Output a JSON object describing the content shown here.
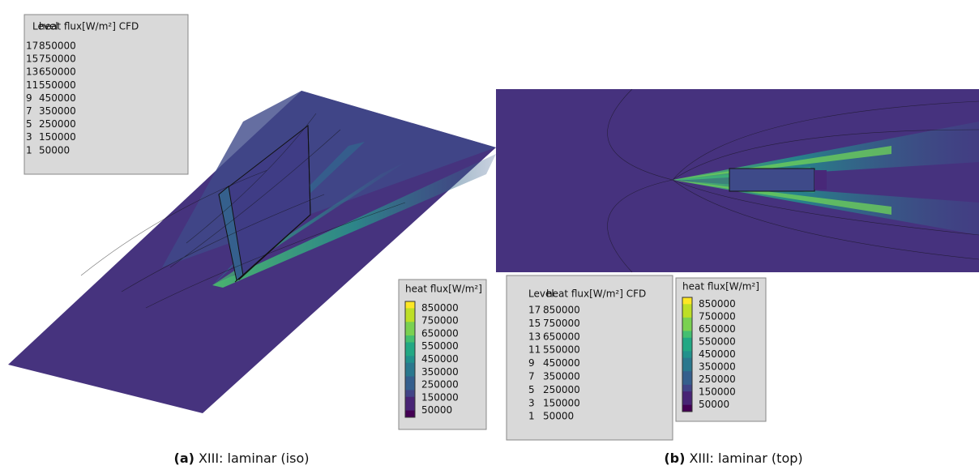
{
  "panels": [
    {
      "caption_label": "(a)",
      "caption": "XIII: laminar (iso)",
      "level_table": {
        "header": [
          "Level",
          "heat flux[W/m²] CFD"
        ],
        "rows": [
          [
            "17",
            "850000"
          ],
          [
            "15",
            "750000"
          ],
          [
            "13",
            "650000"
          ],
          [
            "11",
            "550000"
          ],
          [
            "9",
            "450000"
          ],
          [
            "7",
            "350000"
          ],
          [
            "5",
            "250000"
          ],
          [
            "3",
            "150000"
          ],
          [
            "1",
            "50000"
          ]
        ]
      },
      "colorbar": {
        "title": "heat flux[W/m²]",
        "labels": [
          "850000",
          "750000",
          "650000",
          "550000",
          "450000",
          "350000",
          "250000",
          "150000",
          "50000"
        ]
      }
    },
    {
      "caption_label": "(b)",
      "caption": "XIII: laminar (top)",
      "level_table": {
        "header": [
          "Level",
          "heat flux[W/m²] CFD"
        ],
        "rows": [
          [
            "17",
            "850000"
          ],
          [
            "15",
            "750000"
          ],
          [
            "13",
            "650000"
          ],
          [
            "11",
            "550000"
          ],
          [
            "9",
            "450000"
          ],
          [
            "7",
            "350000"
          ],
          [
            "5",
            "250000"
          ],
          [
            "3",
            "150000"
          ],
          [
            "1",
            "50000"
          ]
        ]
      },
      "colorbar": {
        "title": "heat flux[W/m²]",
        "labels": [
          "850000",
          "750000",
          "650000",
          "550000",
          "450000",
          "350000",
          "250000",
          "150000",
          "50000"
        ]
      }
    }
  ]
}
